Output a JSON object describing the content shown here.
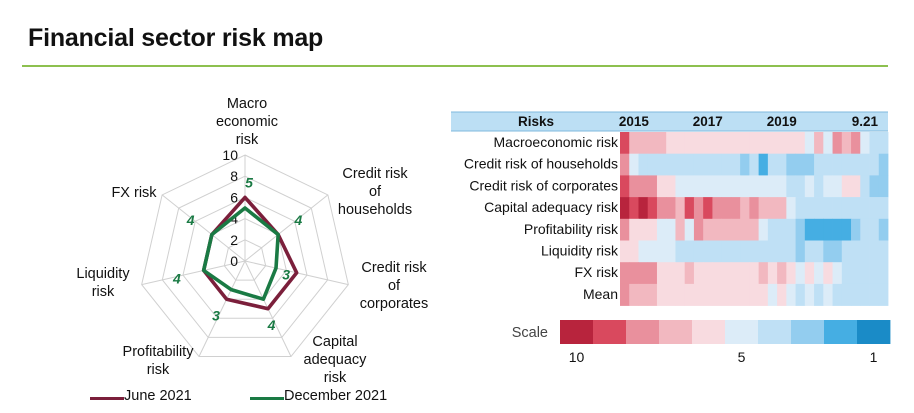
{
  "page": {
    "title": "Financial sector risk map"
  },
  "colors": {
    "rule": "#8dc04f",
    "june_series": "#7b1f3b",
    "december_series": "#1a7a44",
    "grid": "#d0d0d0",
    "header_band": "#bcdff4",
    "value_label": "#1a7a44"
  },
  "chart_data": [
    {
      "type": "radar",
      "axes": [
        {
          "label_lines": [
            "Macro",
            "economic",
            "risk"
          ]
        },
        {
          "label_lines": [
            "Credit risk",
            "of",
            "households"
          ]
        },
        {
          "label_lines": [
            "Credit risk",
            "of",
            "corporates"
          ]
        },
        {
          "label_lines": [
            "Capital",
            "adequacy",
            "risk"
          ]
        },
        {
          "label_lines": [
            "Profitability",
            "risk"
          ]
        },
        {
          "label_lines": [
            "Liquidity",
            "risk"
          ]
        },
        {
          "label_lines": [
            "FX risk"
          ]
        }
      ],
      "rlim": [
        0,
        10
      ],
      "ticks": [
        "0",
        "2",
        "4",
        "6",
        "8",
        "10"
      ],
      "series": [
        {
          "name": "June 2021",
          "values": [
            6,
            4,
            5,
            5,
            4,
            4,
            4
          ]
        },
        {
          "name": "December 2021",
          "values": [
            5,
            4,
            3,
            4,
            3,
            4,
            4
          ]
        }
      ],
      "value_labels": [
        "5",
        "4",
        "3",
        "4",
        "3",
        "4",
        "4"
      ],
      "legend": "bottom"
    },
    {
      "type": "heatmap",
      "header": {
        "row_label": "Risks",
        "period_labels": [
          {
            "label": "2015",
            "col": 1
          },
          {
            "label": "2017",
            "col": 9
          },
          {
            "label": "2019",
            "col": 17
          },
          {
            "label": "9.21",
            "col": 26
          }
        ]
      },
      "rows": [
        "Macroeconomic risk",
        "Credit risk of households",
        "Credit risk of corporates",
        "Capital adequacy risk",
        "Profitability risk",
        "Liquidity risk",
        "FX risk",
        "Mean"
      ],
      "scale_min": 1,
      "scale_max": 10,
      "values": [
        [
          9,
          7,
          7,
          7,
          7,
          6,
          6,
          6,
          6,
          6,
          6,
          6,
          6,
          6,
          6,
          6,
          6,
          6,
          6,
          6,
          5,
          7,
          5,
          8,
          7,
          8,
          5,
          4,
          4
        ],
        [
          8,
          5,
          4,
          4,
          4,
          4,
          4,
          4,
          4,
          4,
          4,
          4,
          4,
          3,
          4,
          2,
          4,
          4,
          3,
          3,
          3,
          4,
          4,
          4,
          4,
          4,
          4,
          4,
          3
        ],
        [
          9,
          8,
          8,
          8,
          6,
          6,
          5,
          5,
          5,
          5,
          5,
          5,
          5,
          5,
          5,
          5,
          5,
          5,
          4,
          4,
          5,
          4,
          5,
          5,
          6,
          6,
          4,
          3,
          3
        ],
        [
          10,
          9,
          10,
          9,
          8,
          8,
          7,
          9,
          8,
          9,
          8,
          8,
          8,
          7,
          8,
          7,
          7,
          7,
          5,
          4,
          4,
          4,
          4,
          4,
          4,
          4,
          4,
          4,
          4
        ],
        [
          8,
          6,
          6,
          6,
          5,
          5,
          7,
          5,
          8,
          7,
          7,
          7,
          7,
          7,
          7,
          5,
          4,
          4,
          4,
          3,
          2,
          2,
          2,
          2,
          2,
          3,
          4,
          4,
          3
        ],
        [
          6,
          6,
          5,
          5,
          5,
          5,
          4,
          4,
          4,
          4,
          4,
          4,
          4,
          4,
          4,
          4,
          4,
          4,
          4,
          3,
          4,
          4,
          3,
          3,
          4,
          4,
          4,
          4,
          4
        ],
        [
          8,
          8,
          8,
          8,
          6,
          6,
          6,
          7,
          6,
          6,
          6,
          6,
          6,
          6,
          6,
          7,
          6,
          7,
          6,
          5,
          6,
          5,
          6,
          5,
          4,
          4,
          4,
          4,
          4
        ],
        [
          8,
          7,
          7,
          7,
          6,
          6,
          6,
          6,
          6,
          6,
          6,
          6,
          6,
          6,
          6,
          6,
          5,
          6,
          5,
          4,
          5,
          4,
          5,
          4,
          4,
          4,
          4,
          4,
          4
        ]
      ],
      "scale": {
        "label": "Scale",
        "colors": [
          "#b8243d",
          "#d9495e",
          "#e9909d",
          "#f2b8c0",
          "#f8dbe0",
          "#dcecf8",
          "#bfe0f5",
          "#93cdef",
          "#45aee3",
          "#1a8bc7"
        ],
        "tick_labels": [
          {
            "label": "10",
            "index": 0
          },
          {
            "label": "5",
            "index": 5
          },
          {
            "label": "1",
            "index": 9
          }
        ]
      }
    }
  ]
}
